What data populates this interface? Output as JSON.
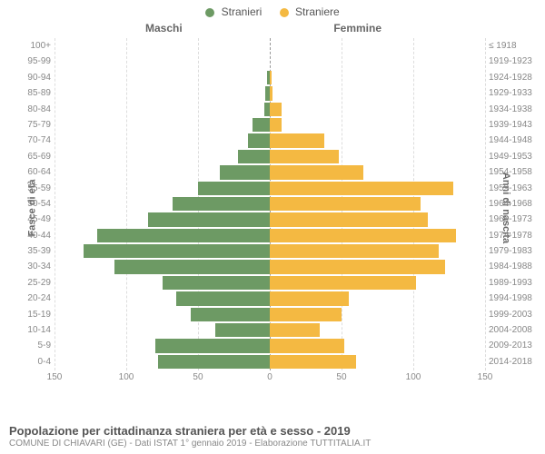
{
  "legend": {
    "male": {
      "label": "Stranieri",
      "color": "#6d9a64"
    },
    "female": {
      "label": "Straniere",
      "color": "#f4b942"
    }
  },
  "headers": {
    "male": "Maschi",
    "female": "Femmine",
    "y_left": "Fasce di età",
    "y_right": "Anni di nascita"
  },
  "chart": {
    "type": "population-pyramid",
    "xlim": 150,
    "xticks_left": [
      0,
      50,
      100,
      150
    ],
    "xticks_right": [
      0,
      50,
      100,
      150
    ],
    "bar_male_color": "#6d9a64",
    "bar_female_color": "#f4b942",
    "background_color": "#ffffff",
    "grid_color": "#dddddd",
    "center_line_color": "#999999",
    "rows": [
      {
        "age": "100+",
        "birth": "≤ 1918",
        "m": 0,
        "f": 0
      },
      {
        "age": "95-99",
        "birth": "1919-1923",
        "m": 0,
        "f": 0
      },
      {
        "age": "90-94",
        "birth": "1924-1928",
        "m": 2,
        "f": 1
      },
      {
        "age": "85-89",
        "birth": "1929-1933",
        "m": 3,
        "f": 2
      },
      {
        "age": "80-84",
        "birth": "1934-1938",
        "m": 4,
        "f": 8
      },
      {
        "age": "75-79",
        "birth": "1939-1943",
        "m": 12,
        "f": 8
      },
      {
        "age": "70-74",
        "birth": "1944-1948",
        "m": 15,
        "f": 38
      },
      {
        "age": "65-69",
        "birth": "1949-1953",
        "m": 22,
        "f": 48
      },
      {
        "age": "60-64",
        "birth": "1954-1958",
        "m": 35,
        "f": 65
      },
      {
        "age": "55-59",
        "birth": "1959-1963",
        "m": 50,
        "f": 128
      },
      {
        "age": "50-54",
        "birth": "1964-1968",
        "m": 68,
        "f": 105
      },
      {
        "age": "45-49",
        "birth": "1969-1973",
        "m": 85,
        "f": 110
      },
      {
        "age": "40-44",
        "birth": "1974-1978",
        "m": 120,
        "f": 130
      },
      {
        "age": "35-39",
        "birth": "1979-1983",
        "m": 130,
        "f": 118
      },
      {
        "age": "30-34",
        "birth": "1984-1988",
        "m": 108,
        "f": 122
      },
      {
        "age": "25-29",
        "birth": "1989-1993",
        "m": 75,
        "f": 102
      },
      {
        "age": "20-24",
        "birth": "1994-1998",
        "m": 65,
        "f": 55
      },
      {
        "age": "15-19",
        "birth": "1999-2003",
        "m": 55,
        "f": 50
      },
      {
        "age": "10-14",
        "birth": "2004-2008",
        "m": 38,
        "f": 35
      },
      {
        "age": "5-9",
        "birth": "2009-2013",
        "m": 80,
        "f": 52
      },
      {
        "age": "0-4",
        "birth": "2014-2018",
        "m": 78,
        "f": 60
      }
    ]
  },
  "title": "Popolazione per cittadinanza straniera per età e sesso - 2019",
  "subtitle": "COMUNE DI CHIAVARI (GE) - Dati ISTAT 1° gennaio 2019 - Elaborazione TUTTITALIA.IT"
}
